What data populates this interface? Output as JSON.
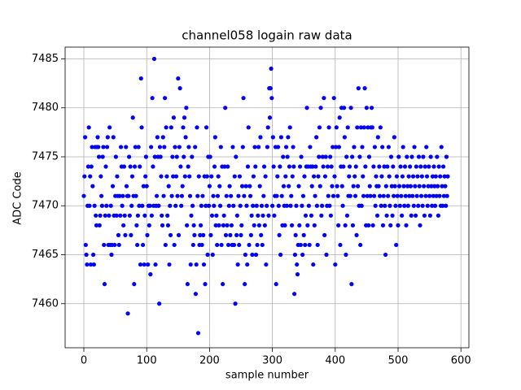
{
  "chart_data": {
    "type": "scatter",
    "title": "channel058 logain raw data",
    "x_label": "sample number",
    "y_label": "ADC Code",
    "xlim": [
      -29.8,
      612.7
    ],
    "ylim": [
      7455.5,
      7486.2
    ],
    "xticks": [
      0,
      100,
      200,
      300,
      400,
      500,
      600
    ],
    "yticks": [
      7460,
      7465,
      7470,
      7475,
      7480,
      7485
    ],
    "grid": true,
    "series": [
      {
        "color": "#0000ff",
        "x": [
          0,
          1,
          2,
          3,
          4,
          5,
          6,
          7,
          8,
          9,
          10,
          11,
          12,
          13,
          14,
          15,
          16,
          17,
          18,
          19,
          20,
          21,
          22,
          23,
          24,
          25,
          26,
          27,
          28,
          29,
          30,
          31,
          32,
          33,
          34,
          35,
          36,
          37,
          38,
          39,
          40,
          41,
          42,
          43,
          44,
          45,
          46,
          47,
          48,
          49,
          50,
          51,
          52,
          53,
          54,
          55,
          56,
          57,
          58,
          59,
          60,
          61,
          62,
          63,
          64,
          65,
          66,
          67,
          68,
          69,
          70,
          71,
          72,
          73,
          74,
          75,
          76,
          77,
          78,
          79,
          80,
          81,
          82,
          83,
          84,
          85,
          86,
          87,
          88,
          89,
          90,
          91,
          92,
          93,
          94,
          95,
          96,
          97,
          98,
          99,
          100,
          101,
          102,
          103,
          104,
          105,
          106,
          107,
          108,
          109,
          110,
          111,
          112,
          113,
          114,
          115,
          116,
          117,
          118,
          119,
          120,
          121,
          122,
          123,
          124,
          125,
          126,
          127,
          128,
          129,
          130,
          131,
          132,
          133,
          134,
          135,
          136,
          137,
          138,
          139,
          140,
          141,
          142,
          143,
          144,
          145,
          146,
          147,
          148,
          149,
          150,
          151,
          152,
          153,
          154,
          155,
          156,
          157,
          158,
          159,
          160,
          161,
          162,
          163,
          164,
          165,
          166,
          167,
          168,
          169,
          170,
          171,
          172,
          173,
          174,
          175,
          176,
          177,
          178,
          179,
          180,
          181,
          182,
          183,
          184,
          185,
          186,
          187,
          188,
          189,
          190,
          191,
          192,
          193,
          194,
          195,
          196,
          197,
          198,
          199,
          200,
          201,
          202,
          203,
          204,
          205,
          206,
          207,
          208,
          209,
          210,
          211,
          212,
          213,
          214,
          215,
          216,
          217,
          218,
          219,
          220,
          221,
          222,
          223,
          224,
          225,
          226,
          227,
          228,
          229,
          230,
          231,
          232,
          233,
          234,
          235,
          236,
          237,
          238,
          239,
          240,
          241,
          242,
          243,
          244,
          245,
          246,
          247,
          248,
          249,
          250,
          251,
          252,
          253,
          254,
          255,
          256,
          257,
          258,
          259,
          260,
          261,
          262,
          263,
          264,
          265,
          266,
          267,
          268,
          269,
          270,
          271,
          272,
          273,
          274,
          275,
          276,
          277,
          278,
          279,
          280,
          281,
          282,
          283,
          284,
          285,
          286,
          287,
          288,
          289,
          290,
          291,
          292,
          293,
          294,
          295,
          296,
          297,
          298,
          299,
          300,
          301,
          302,
          303,
          304,
          305,
          306,
          307,
          308,
          309,
          310,
          311,
          312,
          313,
          314,
          315,
          316,
          317,
          318,
          319,
          320,
          321,
          322,
          323,
          324,
          325,
          326,
          327,
          328,
          329,
          330,
          331,
          332,
          333,
          334,
          335,
          336,
          337,
          338,
          339,
          340,
          341,
          342,
          343,
          344,
          345,
          346,
          347,
          348,
          349,
          350,
          351,
          352,
          353,
          354,
          355,
          356,
          357,
          358,
          359,
          360,
          361,
          362,
          363,
          364,
          365,
          366,
          367,
          368,
          369,
          370,
          371,
          372,
          373,
          374,
          375,
          376,
          377,
          378,
          379,
          380,
          381,
          382,
          383,
          384,
          385,
          386,
          387,
          388,
          389,
          390,
          391,
          392,
          393,
          394,
          395,
          396,
          397,
          398,
          399,
          400,
          401,
          402,
          403,
          404,
          405,
          406,
          407,
          408,
          409,
          410,
          411,
          412,
          413,
          414,
          415,
          416,
          417,
          418,
          419,
          420,
          421,
          422,
          423,
          424,
          425,
          426,
          427,
          428,
          429,
          430,
          431,
          432,
          433,
          434,
          435,
          436,
          437,
          438,
          439,
          440,
          441,
          442,
          443,
          444,
          445,
          446,
          447,
          448,
          449,
          450,
          451,
          452,
          453,
          454,
          455,
          456,
          457,
          458,
          459,
          460,
          461,
          462,
          463,
          464,
          465,
          466,
          467,
          468,
          469,
          470,
          471,
          472,
          473,
          474,
          475,
          476,
          477,
          478,
          479,
          480,
          481,
          482,
          483,
          484,
          485,
          486,
          487,
          488,
          489,
          490,
          491,
          492,
          493,
          494,
          495,
          496,
          497,
          498,
          499,
          500,
          501,
          502,
          503,
          504,
          505,
          506,
          507,
          508,
          509,
          510,
          511,
          512,
          513,
          514,
          515,
          516,
          517,
          518,
          519,
          520,
          521,
          522,
          523,
          524,
          525,
          526,
          527,
          528,
          529,
          530,
          531,
          532,
          533,
          534,
          535,
          536,
          537,
          538,
          539,
          540,
          541,
          542,
          543,
          544,
          545,
          546,
          547,
          548,
          549,
          550,
          551,
          552,
          553,
          554,
          555,
          556,
          557,
          558,
          559,
          560,
          561,
          562,
          563,
          564,
          565,
          566,
          567,
          568,
          569,
          570,
          571,
          572,
          573,
          574,
          575,
          576,
          577,
          578,
          579
        ],
        "values": [
          7471,
          7473,
          7477,
          7466,
          7465,
          7464,
          7470,
          7474,
          7478,
          7470,
          7473,
          7464,
          7474,
          7476,
          7472,
          7465,
          7464,
          7470,
          7476,
          7469,
          7468,
          7476,
          7477,
          7476,
          7475,
          7468,
          7469,
          7473,
          7471,
          7470,
          7475,
          7476,
          7466,
          7462,
          7469,
          7474,
          7470,
          7476,
          7477,
          7466,
          7469,
          7478,
          7466,
          7470,
          7465,
          7466,
          7472,
          7477,
          7469,
          7466,
          7471,
          7475,
          7469,
          7473,
          7471,
          7467,
          7466,
          7471,
          7469,
          7476,
          7474,
          7470,
          7471,
          7468,
          7474,
          7469,
          7467,
          7476,
          7472,
          7471,
          7459,
          7471,
          7475,
          7469,
          7474,
          7467,
          7470,
          7473,
          7479,
          7471,
          7462,
          7474,
          7476,
          7471,
          7468,
          7466,
          7469,
          7476,
          7470,
          7474,
          7464,
          7483,
          7478,
          7470,
          7466,
          7472,
          7464,
          7469,
          7473,
          7475,
          7472,
          7467,
          7464,
          7470,
          7468,
          7470,
          7463,
          7476,
          7469,
          7481,
          7474,
          7470,
          7485,
          7475,
          7464,
          7470,
          7471,
          7477,
          7475,
          7470,
          7460,
          7476,
          7475,
          7473,
          7469,
          7468,
          7477,
          7471,
          7476,
          7481,
          7466,
          7478,
          7473,
          7469,
          7468,
          7472,
          7464,
          7470,
          7467,
          7478,
          7471,
          7475,
          7473,
          7479,
          7466,
          7476,
          7470,
          7473,
          7475,
          7471,
          7483,
          7467,
          7476,
          7482,
          7474,
          7470,
          7471,
          7472,
          7478,
          7475,
          7479,
          7473,
          7477,
          7480,
          7468,
          7462,
          7474,
          7476,
          7473,
          7471,
          7464,
          7469,
          7475,
          7470,
          7466,
          7468,
          7467,
          7476,
          7461,
          7464,
          7478,
          7471,
          7457,
          7473,
          7466,
          7467,
          7468,
          7470,
          7466,
          7471,
          7467,
          7464,
          7473,
          7462,
          7470,
          7478,
          7473,
          7465,
          7475,
          7470,
          7472,
          7475,
          7467,
          7473,
          7469,
          7465,
          7471,
          7470,
          7474,
          7477,
          7468,
          7469,
          7466,
          7471,
          7473,
          7468,
          7472,
          7470,
          7476,
          7466,
          7474,
          7462,
          7468,
          7469,
          7474,
          7480,
          7467,
          7471,
          7468,
          7474,
          7466,
          7470,
          7472,
          7467,
          7471,
          7468,
          7466,
          7476,
          7470,
          7466,
          7473,
          7460,
          7475,
          7467,
          7469,
          7464,
          7471,
          7466,
          7473,
          7470,
          7467,
          7468,
          7472,
          7476,
          7481,
          7471,
          7462,
          7465,
          7472,
          7470,
          7464,
          7474,
          7478,
          7466,
          7472,
          7471,
          7467,
          7469,
          7465,
          7470,
          7473,
          7468,
          7476,
          7474,
          7465,
          7470,
          7466,
          7469,
          7476,
          7468,
          7472,
          7477,
          7467,
          7470,
          7466,
          7469,
          7471,
          7474,
          7468,
          7473,
          7464,
          7470,
          7476,
          7478,
          7469,
          7482,
          7479,
          7482,
          7484,
          7481,
          7470,
          7477,
          7474,
          7469,
          7471,
          7476,
          7462,
          7471,
          7473,
          7476,
          7470,
          7467,
          7474,
          7465,
          7477,
          7471,
          7468,
          7475,
          7472,
          7470,
          7468,
          7473,
          7476,
          7470,
          7475,
          7477,
          7472,
          7474,
          7478,
          7470,
          7471,
          7468,
          7473,
          7476,
          7474,
          7461,
          7465,
          7467,
          7470,
          7464,
          7463,
          7466,
          7472,
          7468,
          7474,
          7466,
          7475,
          7470,
          7465,
          7471,
          7467,
          7473,
          7466,
          7469,
          7474,
          7480,
          7468,
          7474,
          7470,
          7466,
          7476,
          7474,
          7469,
          7472,
          7474,
          7464,
          7473,
          7468,
          7471,
          7474,
          7477,
          7470,
          7466,
          7473,
          7475,
          7478,
          7472,
          7480,
          7469,
          7470,
          7475,
          7474,
          7481,
          7467,
          7473,
          7475,
          7465,
          7470,
          7474,
          7471,
          7478,
          7470,
          7475,
          7469,
          7474,
          7472,
          7476,
          7471,
          7481,
          7473,
          7464,
          7476,
          7478,
          7472,
          7471,
          7468,
          7476,
          7479,
          7466,
          7474,
          7480,
          7472,
          7470,
          7474,
          7480,
          7477,
          7468,
          7465,
          7475,
          7469,
          7478,
          7471,
          7473,
          7474,
          7471,
          7480,
          7462,
          7475,
          7468,
          7472,
          7476,
          7473,
          7471,
          7474,
          7467,
          7478,
          7472,
          7482,
          7470,
          7475,
          7466,
          7478,
          7470,
          7476,
          7473,
          7471,
          7478,
          7482,
          7474,
          7468,
          7480,
          7471,
          7478,
          7468,
          7475,
          7472,
          7471,
          7478,
          7480,
          7478,
          7468,
          7474,
          7471,
          7476,
          7470,
          7473,
          7472,
          7469,
          7477,
          7472,
          7474,
          7471,
          7478,
          7470,
          7473,
          7476,
          7468,
          7471,
          7474,
          7470,
          7465,
          7472,
          7469,
          7474,
          7471,
          7476,
          7473,
          7470,
          7468,
          7475,
          7472,
          7469,
          7474,
          7471,
          7477,
          7472,
          7470,
          7466,
          7473,
          7471,
          7468,
          7475,
          7472,
          7470,
          7474,
          7471,
          7469,
          7473,
          7476,
          7472,
          7470,
          7474,
          7471,
          7468,
          7475,
          7472,
          7470,
          7473,
          7471,
          7474,
          7472,
          7469,
          7475,
          7471,
          7473,
          7470,
          7476,
          7472,
          7469,
          7474,
          7471,
          7473,
          7470,
          7475,
          7472,
          7468,
          7474,
          7471,
          7473,
          7470,
          7475,
          7472,
          7469,
          7474,
          7471,
          7476,
          7473,
          7470,
          7472,
          7474,
          7471,
          7469,
          7475,
          7472,
          7470,
          7473,
          7471,
          7474,
          7472,
          7470,
          7473,
          7471,
          7475,
          7472,
          7469,
          7474,
          7471,
          7473,
          7470,
          7476,
          7472,
          7470,
          7474,
          7471,
          7473,
          7472,
          7470,
          7475,
          7471,
          7473
        ]
      }
    ]
  }
}
